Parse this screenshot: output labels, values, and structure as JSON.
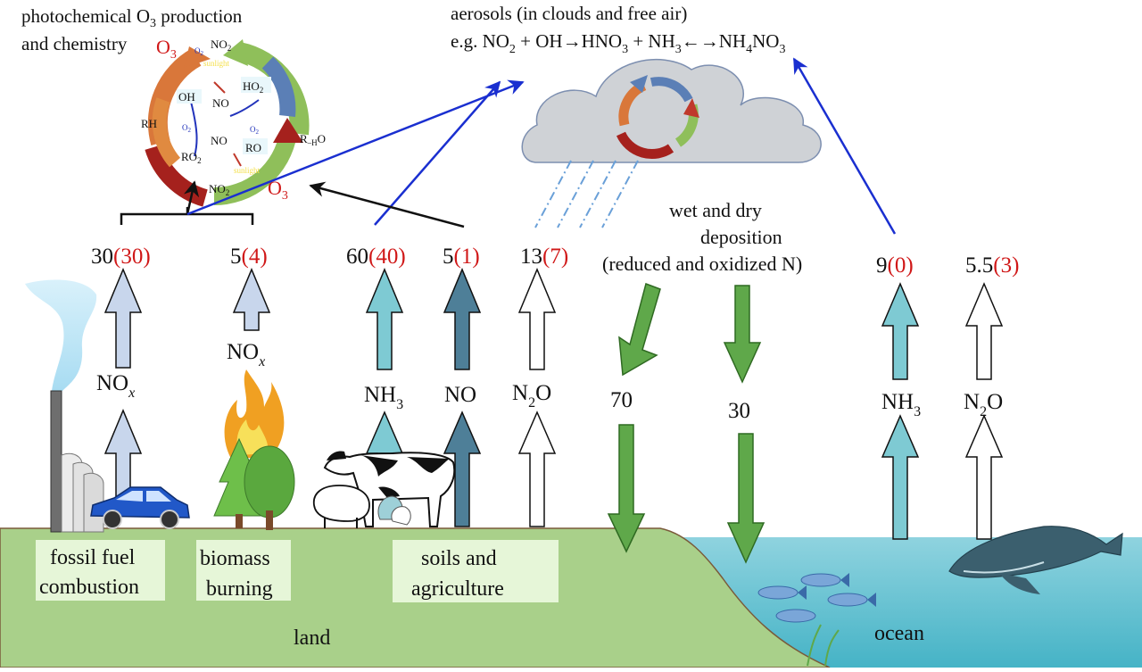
{
  "ozone_panel": {
    "title_line1": "photochemical O",
    "title_sub": "3",
    "title_line1_end": " production",
    "title_line2": "and chemistry",
    "o3_top": "O",
    "o3_top_sub": "3",
    "o3_bottom": "O",
    "o3_bottom_sub": "3",
    "species": {
      "oh": "OH",
      "no_a": "NO",
      "no2_a": "NO",
      "ho2": "HO",
      "rh": "RH",
      "ro2": "RO",
      "no_b": "NO",
      "ro": "RO",
      "rho": "R",
      "no2_b": "NO",
      "sunlight": "sunlight",
      "o2": "O",
      "h_o": "O"
    }
  },
  "aerosol_panel": {
    "line1": "aerosols (in clouds and free air)",
    "line2_a": "e.g. NO",
    "line2_b": " + OH→HNO",
    "line2_c": " + NH",
    "line2_d": "←→NH",
    "line2_e": "NO",
    "sub2": "2",
    "sub3": "3",
    "sub4": "4"
  },
  "fluxes": [
    {
      "id": "fossil_nox",
      "value": "30",
      "paren": "(30)",
      "species": "NO",
      "species_sub": "x"
    },
    {
      "id": "biomass_nox",
      "value": "5",
      "paren": "(4)",
      "species": "NO",
      "species_sub": "x"
    },
    {
      "id": "nh3_land",
      "value": "60",
      "paren": "(40)",
      "species": "NH",
      "species_sub": "3"
    },
    {
      "id": "no_land",
      "value": "5",
      "paren": "(1)",
      "species": "NO",
      "species_sub": ""
    },
    {
      "id": "n2o_land",
      "value": "13",
      "paren": "(7)",
      "species": "N",
      "species_sub": "2",
      "species_end": "O"
    },
    {
      "id": "nh3_ocean",
      "value": "9",
      "paren": "(0)",
      "species": "NH",
      "species_sub": "3"
    },
    {
      "id": "n2o_ocean",
      "value": "5.5",
      "paren": "(3)",
      "species": "N",
      "species_sub": "2",
      "species_end": "O"
    }
  ],
  "deposition": {
    "line1": "wet and dry",
    "line2": "deposition",
    "line3": "(reduced and oxidized N)",
    "value_land": "70",
    "value_ocean": "30"
  },
  "sources": {
    "fossil_line1": "fossil fuel",
    "fossil_line2": "combustion",
    "biomass_line1": "biomass",
    "biomass_line2": "burning",
    "soils_line1": "soils and",
    "soils_line2": "agriculture"
  },
  "regions": {
    "land": "land",
    "ocean": "ocean"
  },
  "colors": {
    "land": "#a9d08a",
    "ocean": "#5bbfcf",
    "ocean_top": "#8fd3df",
    "nox_arrow": "#c8d6ec",
    "nh3_arrow": "#7ecad3",
    "no_arrow": "#4e7f98",
    "deposition_arrow": "#5fa84a",
    "blue_line": "#1a2fd0",
    "red_text": "#d01818",
    "label_box": "#e6f6d8"
  }
}
